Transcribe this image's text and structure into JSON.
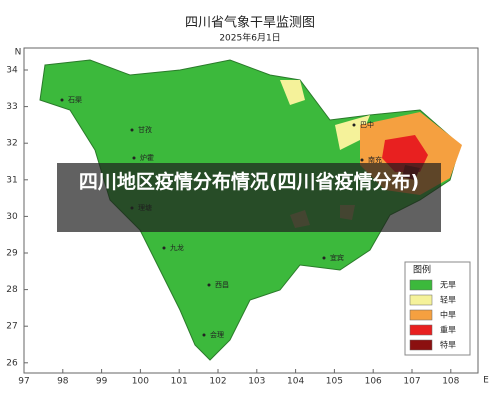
{
  "header": {
    "title": "四川省气象干旱监测图",
    "date": "2025年6月1日"
  },
  "axes": {
    "lat_label": "N",
    "lon_label": "E",
    "lat_ticks": [
      34,
      33,
      32,
      31,
      30,
      29,
      28,
      27,
      26
    ],
    "lon_ticks": [
      97,
      98,
      99,
      100,
      101,
      102,
      103,
      104,
      105,
      106,
      107,
      108
    ]
  },
  "places": [
    "石渠",
    "甘孜",
    "炉霍",
    "理塘",
    "九龙",
    "西昌",
    "会理",
    "巴中",
    "南充",
    "宜宾"
  ],
  "legend": {
    "title": "图例",
    "items": [
      "无旱",
      "轻旱",
      "中旱",
      "重旱",
      "特旱"
    ]
  },
  "banner": "四川地区疫情分布情况(四川省疫情分布)"
}
